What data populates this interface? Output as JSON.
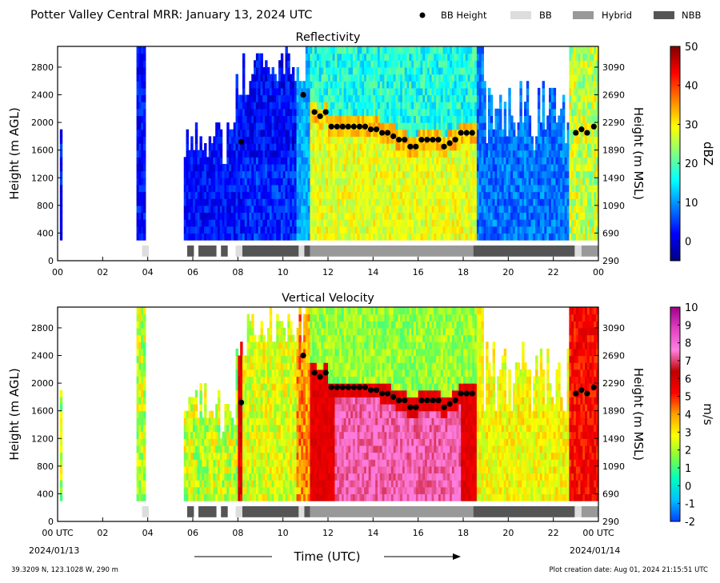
{
  "header": {
    "title": "Potter Valley Central MRR:  January 13, 2024 UTC",
    "legend": [
      {
        "label": "BB Height",
        "kind": "dot",
        "color": "#000000"
      },
      {
        "label": "BB",
        "kind": "box",
        "color": "#dddddd"
      },
      {
        "label": "Hybrid",
        "kind": "box",
        "color": "#999999"
      },
      {
        "label": "NBB",
        "kind": "box",
        "color": "#555555"
      }
    ]
  },
  "footer": {
    "xlabel": "Time (UTC)",
    "location": "39.3209 N, 123.1028 W, 290 m",
    "creation": "Plot creation date: Aug 01, 2024 21:15:51 UTC",
    "start_date": "2024/01/13",
    "end_date": "2024/01/14"
  },
  "chart_data": [
    {
      "type": "heatmap",
      "title": "Reflectivity",
      "ylabel": "Height (m AGL)",
      "ylabel_right": "Height (m MSL)",
      "xlim": [
        0,
        24
      ],
      "ylim": [
        0,
        3100
      ],
      "x_ticks": [
        "00",
        "02",
        "04",
        "06",
        "08",
        "10",
        "12",
        "14",
        "16",
        "18",
        "20",
        "22",
        "00"
      ],
      "y_ticks": [
        0,
        400,
        800,
        1200,
        1600,
        2000,
        2400,
        2800
      ],
      "y_ticks_right": [
        290,
        690,
        1090,
        1490,
        1890,
        2290,
        2690,
        3090
      ],
      "colorbar": {
        "label": "dBZ",
        "min": -5,
        "max": 50,
        "ticks": [
          0,
          10,
          20,
          30,
          40,
          50
        ],
        "colors": [
          "#00007f",
          "#0000ff",
          "#0080ff",
          "#00ffff",
          "#80ff80",
          "#ffff00",
          "#ff8000",
          "#ff0000",
          "#7f0000"
        ]
      }
    },
    {
      "type": "heatmap",
      "title": "Vertical Velocity",
      "ylabel": "Height (m AGL)",
      "ylabel_right": "Height (m MSL)",
      "xlim": [
        0,
        24
      ],
      "ylim": [
        0,
        3100
      ],
      "x_ticks": [
        "00 UTC",
        "02",
        "04",
        "06",
        "08",
        "10",
        "12",
        "14",
        "16",
        "18",
        "20",
        "22",
        "00 UTC"
      ],
      "y_ticks": [
        0,
        400,
        800,
        1200,
        1600,
        2000,
        2400,
        2800
      ],
      "y_ticks_right": [
        290,
        690,
        1090,
        1490,
        1890,
        2290,
        2690,
        3090
      ],
      "colorbar": {
        "label": "m/s",
        "min": -2,
        "max": 10,
        "ticks": [
          -2,
          -1,
          0,
          1,
          2,
          3,
          4,
          5,
          6,
          7,
          8,
          9,
          10
        ],
        "colors": [
          "#0040ff",
          "#00c0ff",
          "#00ffc0",
          "#80ff40",
          "#ffff00",
          "#ffa000",
          "#ff0000",
          "#c00000",
          "#ff80e0",
          "#e040c0",
          "#a0008a"
        ]
      }
    }
  ],
  "bright_band": {
    "heights": [
      {
        "t": 8.15,
        "h": 1720
      },
      {
        "t": 10.9,
        "h": 2400
      },
      {
        "t": 11.4,
        "h": 2150
      },
      {
        "t": 11.65,
        "h": 2090
      },
      {
        "t": 11.9,
        "h": 2150
      },
      {
        "t": 12.15,
        "h": 1940
      },
      {
        "t": 12.4,
        "h": 1940
      },
      {
        "t": 12.65,
        "h": 1940
      },
      {
        "t": 12.9,
        "h": 1940
      },
      {
        "t": 13.15,
        "h": 1940
      },
      {
        "t": 13.4,
        "h": 1940
      },
      {
        "t": 13.65,
        "h": 1940
      },
      {
        "t": 13.9,
        "h": 1900
      },
      {
        "t": 14.15,
        "h": 1900
      },
      {
        "t": 14.4,
        "h": 1850
      },
      {
        "t": 14.65,
        "h": 1850
      },
      {
        "t": 14.9,
        "h": 1800
      },
      {
        "t": 15.15,
        "h": 1750
      },
      {
        "t": 15.4,
        "h": 1750
      },
      {
        "t": 15.65,
        "h": 1650
      },
      {
        "t": 15.9,
        "h": 1650
      },
      {
        "t": 16.15,
        "h": 1750
      },
      {
        "t": 16.4,
        "h": 1750
      },
      {
        "t": 16.65,
        "h": 1750
      },
      {
        "t": 16.9,
        "h": 1750
      },
      {
        "t": 17.15,
        "h": 1650
      },
      {
        "t": 17.4,
        "h": 1700
      },
      {
        "t": 17.65,
        "h": 1750
      },
      {
        "t": 17.9,
        "h": 1850
      },
      {
        "t": 18.15,
        "h": 1850
      },
      {
        "t": 18.4,
        "h": 1850
      },
      {
        "t": 23.0,
        "h": 1850
      },
      {
        "t": 23.25,
        "h": 1900
      },
      {
        "t": 23.5,
        "h": 1850
      },
      {
        "t": 23.8,
        "h": 1940
      }
    ],
    "classification": [
      {
        "start": 3.75,
        "end": 4.05,
        "type": "BB"
      },
      {
        "start": 5.75,
        "end": 6.05,
        "type": "NBB"
      },
      {
        "start": 6.25,
        "end": 7.05,
        "type": "NBB"
      },
      {
        "start": 7.25,
        "end": 7.55,
        "type": "NBB"
      },
      {
        "start": 7.9,
        "end": 8.2,
        "type": "BB"
      },
      {
        "start": 8.2,
        "end": 10.7,
        "type": "NBB"
      },
      {
        "start": 10.7,
        "end": 10.95,
        "type": "BB"
      },
      {
        "start": 10.95,
        "end": 11.2,
        "type": "NBB"
      },
      {
        "start": 11.2,
        "end": 18.45,
        "type": "Hybrid"
      },
      {
        "start": 18.45,
        "end": 22.95,
        "type": "NBB"
      },
      {
        "start": 22.95,
        "end": 23.25,
        "type": "BB"
      },
      {
        "start": 23.25,
        "end": 24.0,
        "type": "Hybrid"
      }
    ]
  }
}
